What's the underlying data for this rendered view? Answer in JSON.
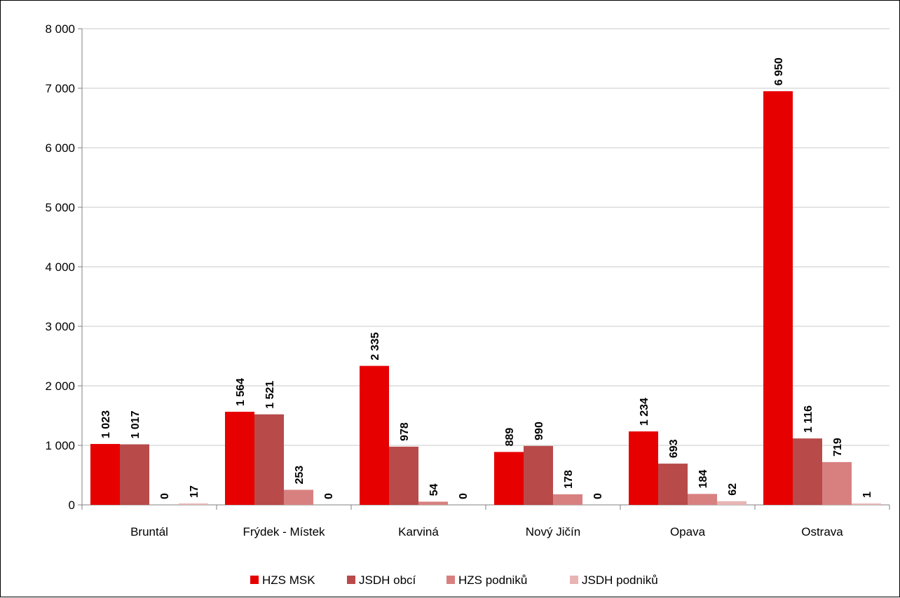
{
  "chart_data": {
    "type": "bar",
    "title": "",
    "xlabel": "",
    "ylabel": "",
    "ylim": [
      0,
      8000
    ],
    "y_ticks": [
      0,
      1000,
      2000,
      3000,
      4000,
      5000,
      6000,
      7000,
      8000
    ],
    "y_tick_labels": [
      "0",
      "1 000",
      "2 000",
      "3 000",
      "4 000",
      "5 000",
      "6 000",
      "7 000",
      "8 000"
    ],
    "grid": true,
    "legend_position": "bottom",
    "categories": [
      "Bruntál",
      "Frýdek - Místek",
      "Karviná",
      "Nový Jičín",
      "Opava",
      "Ostrava"
    ],
    "series": [
      {
        "name": "HZS MSK",
        "color": "#e60000",
        "values": [
          1023,
          1564,
          2335,
          889,
          1234,
          6950
        ],
        "labels": [
          "1 023",
          "1 564",
          "2 335",
          "889",
          "1 234",
          "6 950"
        ]
      },
      {
        "name": "JSDH obcí",
        "color": "#b84a4a",
        "values": [
          1017,
          1521,
          978,
          990,
          693,
          1116
        ],
        "labels": [
          "1 017",
          "1 521",
          "978",
          "990",
          "693",
          "1 116"
        ]
      },
      {
        "name": "HZS podniků",
        "color": "#d88080",
        "values": [
          0,
          253,
          54,
          178,
          184,
          719
        ],
        "labels": [
          "0",
          "253",
          "54",
          "178",
          "184",
          "719"
        ]
      },
      {
        "name": "JSDH podniků",
        "color": "#e8b4b4",
        "values": [
          17,
          0,
          0,
          0,
          62,
          1
        ],
        "labels": [
          "17",
          "0",
          "0",
          "0",
          "62",
          "1"
        ]
      }
    ]
  }
}
